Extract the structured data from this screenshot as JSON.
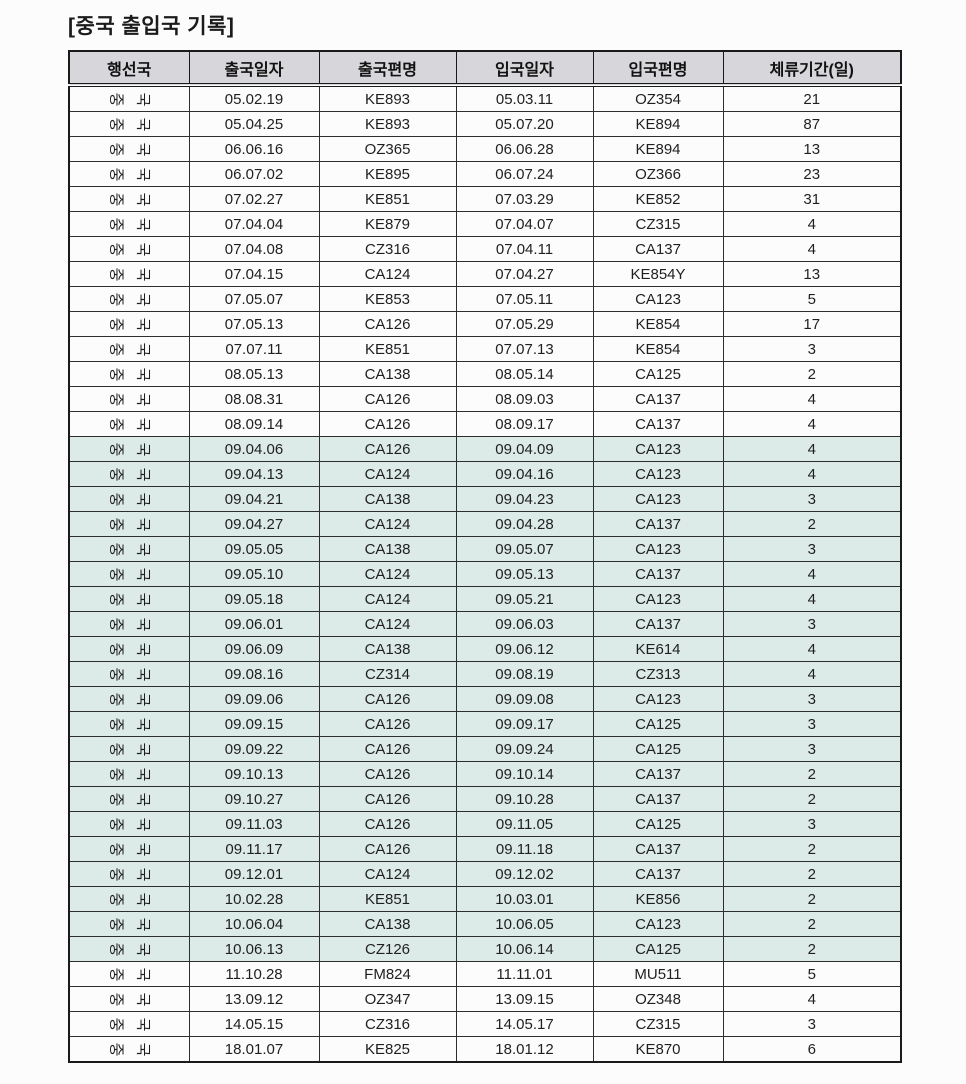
{
  "title": "[중국 출입국 기록]",
  "colors": {
    "header_bg": "#d7d7db",
    "highlight_bg": "#dcebe8",
    "border_dark": "#1a1a1a",
    "border_mid": "#2e2e2e"
  },
  "table": {
    "headers": [
      "행선국",
      "출국일자",
      "출국편명",
      "입국일자",
      "입국편명",
      "체류기간(일)"
    ],
    "rows": [
      {
        "country": "중 국",
        "dep_date": "05.02.19",
        "dep_flight": "KE893",
        "arr_date": "05.03.11",
        "arr_flight": "OZ354",
        "stay_days": "21",
        "highlight": false
      },
      {
        "country": "중 국",
        "dep_date": "05.04.25",
        "dep_flight": "KE893",
        "arr_date": "05.07.20",
        "arr_flight": "KE894",
        "stay_days": "87",
        "highlight": false
      },
      {
        "country": "중 국",
        "dep_date": "06.06.16",
        "dep_flight": "OZ365",
        "arr_date": "06.06.28",
        "arr_flight": "KE894",
        "stay_days": "13",
        "highlight": false
      },
      {
        "country": "중 국",
        "dep_date": "06.07.02",
        "dep_flight": "KE895",
        "arr_date": "06.07.24",
        "arr_flight": "OZ366",
        "stay_days": "23",
        "highlight": false
      },
      {
        "country": "중 국",
        "dep_date": "07.02.27",
        "dep_flight": "KE851",
        "arr_date": "07.03.29",
        "arr_flight": "KE852",
        "stay_days": "31",
        "highlight": false
      },
      {
        "country": "중 국",
        "dep_date": "07.04.04",
        "dep_flight": "KE879",
        "arr_date": "07.04.07",
        "arr_flight": "CZ315",
        "stay_days": "4",
        "highlight": false
      },
      {
        "country": "중 국",
        "dep_date": "07.04.08",
        "dep_flight": "CZ316",
        "arr_date": "07.04.11",
        "arr_flight": "CA137",
        "stay_days": "4",
        "highlight": false
      },
      {
        "country": "중 국",
        "dep_date": "07.04.15",
        "dep_flight": "CA124",
        "arr_date": "07.04.27",
        "arr_flight": "KE854Y",
        "stay_days": "13",
        "highlight": false
      },
      {
        "country": "중 국",
        "dep_date": "07.05.07",
        "dep_flight": "KE853",
        "arr_date": "07.05.11",
        "arr_flight": "CA123",
        "stay_days": "5",
        "highlight": false
      },
      {
        "country": "중 국",
        "dep_date": "07.05.13",
        "dep_flight": "CA126",
        "arr_date": "07.05.29",
        "arr_flight": "KE854",
        "stay_days": "17",
        "highlight": false
      },
      {
        "country": "중 국",
        "dep_date": "07.07.11",
        "dep_flight": "KE851",
        "arr_date": "07.07.13",
        "arr_flight": "KE854",
        "stay_days": "3",
        "highlight": false
      },
      {
        "country": "중 국",
        "dep_date": "08.05.13",
        "dep_flight": "CA138",
        "arr_date": "08.05.14",
        "arr_flight": "CA125",
        "stay_days": "2",
        "highlight": false
      },
      {
        "country": "중 국",
        "dep_date": "08.08.31",
        "dep_flight": "CA126",
        "arr_date": "08.09.03",
        "arr_flight": "CA137",
        "stay_days": "4",
        "highlight": false
      },
      {
        "country": "중 국",
        "dep_date": "08.09.14",
        "dep_flight": "CA126",
        "arr_date": "08.09.17",
        "arr_flight": "CA137",
        "stay_days": "4",
        "highlight": false
      },
      {
        "country": "중 국",
        "dep_date": "09.04.06",
        "dep_flight": "CA126",
        "arr_date": "09.04.09",
        "arr_flight": "CA123",
        "stay_days": "4",
        "highlight": true
      },
      {
        "country": "중 국",
        "dep_date": "09.04.13",
        "dep_flight": "CA124",
        "arr_date": "09.04.16",
        "arr_flight": "CA123",
        "stay_days": "4",
        "highlight": true
      },
      {
        "country": "중 국",
        "dep_date": "09.04.21",
        "dep_flight": "CA138",
        "arr_date": "09.04.23",
        "arr_flight": "CA123",
        "stay_days": "3",
        "highlight": true
      },
      {
        "country": "중 국",
        "dep_date": "09.04.27",
        "dep_flight": "CA124",
        "arr_date": "09.04.28",
        "arr_flight": "CA137",
        "stay_days": "2",
        "highlight": true
      },
      {
        "country": "중 국",
        "dep_date": "09.05.05",
        "dep_flight": "CA138",
        "arr_date": "09.05.07",
        "arr_flight": "CA123",
        "stay_days": "3",
        "highlight": true
      },
      {
        "country": "중 국",
        "dep_date": "09.05.10",
        "dep_flight": "CA124",
        "arr_date": "09.05.13",
        "arr_flight": "CA137",
        "stay_days": "4",
        "highlight": true
      },
      {
        "country": "중 국",
        "dep_date": "09.05.18",
        "dep_flight": "CA124",
        "arr_date": "09.05.21",
        "arr_flight": "CA123",
        "stay_days": "4",
        "highlight": true
      },
      {
        "country": "중 국",
        "dep_date": "09.06.01",
        "dep_flight": "CA124",
        "arr_date": "09.06.03",
        "arr_flight": "CA137",
        "stay_days": "3",
        "highlight": true
      },
      {
        "country": "중 국",
        "dep_date": "09.06.09",
        "dep_flight": "CA138",
        "arr_date": "09.06.12",
        "arr_flight": "KE614",
        "stay_days": "4",
        "highlight": true
      },
      {
        "country": "중 국",
        "dep_date": "09.08.16",
        "dep_flight": "CZ314",
        "arr_date": "09.08.19",
        "arr_flight": "CZ313",
        "stay_days": "4",
        "highlight": true
      },
      {
        "country": "중 국",
        "dep_date": "09.09.06",
        "dep_flight": "CA126",
        "arr_date": "09.09.08",
        "arr_flight": "CA123",
        "stay_days": "3",
        "highlight": true
      },
      {
        "country": "중 국",
        "dep_date": "09.09.15",
        "dep_flight": "CA126",
        "arr_date": "09.09.17",
        "arr_flight": "CA125",
        "stay_days": "3",
        "highlight": true
      },
      {
        "country": "중 국",
        "dep_date": "09.09.22",
        "dep_flight": "CA126",
        "arr_date": "09.09.24",
        "arr_flight": "CA125",
        "stay_days": "3",
        "highlight": true
      },
      {
        "country": "중 국",
        "dep_date": "09.10.13",
        "dep_flight": "CA126",
        "arr_date": "09.10.14",
        "arr_flight": "CA137",
        "stay_days": "2",
        "highlight": true
      },
      {
        "country": "중 국",
        "dep_date": "09.10.27",
        "dep_flight": "CA126",
        "arr_date": "09.10.28",
        "arr_flight": "CA137",
        "stay_days": "2",
        "highlight": true
      },
      {
        "country": "중 국",
        "dep_date": "09.11.03",
        "dep_flight": "CA126",
        "arr_date": "09.11.05",
        "arr_flight": "CA125",
        "stay_days": "3",
        "highlight": true
      },
      {
        "country": "중 국",
        "dep_date": "09.11.17",
        "dep_flight": "CA126",
        "arr_date": "09.11.18",
        "arr_flight": "CA137",
        "stay_days": "2",
        "highlight": true
      },
      {
        "country": "중 국",
        "dep_date": "09.12.01",
        "dep_flight": "CA124",
        "arr_date": "09.12.02",
        "arr_flight": "CA137",
        "stay_days": "2",
        "highlight": true
      },
      {
        "country": "중 국",
        "dep_date": "10.02.28",
        "dep_flight": "KE851",
        "arr_date": "10.03.01",
        "arr_flight": "KE856",
        "stay_days": "2",
        "highlight": true
      },
      {
        "country": "중 국",
        "dep_date": "10.06.04",
        "dep_flight": "CA138",
        "arr_date": "10.06.05",
        "arr_flight": "CA123",
        "stay_days": "2",
        "highlight": true
      },
      {
        "country": "중 국",
        "dep_date": "10.06.13",
        "dep_flight": "CZ126",
        "arr_date": "10.06.14",
        "arr_flight": "CA125",
        "stay_days": "2",
        "highlight": true
      },
      {
        "country": "중 국",
        "dep_date": "11.10.28",
        "dep_flight": "FM824",
        "arr_date": "11.11.01",
        "arr_flight": "MU511",
        "stay_days": "5",
        "highlight": false
      },
      {
        "country": "중 국",
        "dep_date": "13.09.12",
        "dep_flight": "OZ347",
        "arr_date": "13.09.15",
        "arr_flight": "OZ348",
        "stay_days": "4",
        "highlight": false
      },
      {
        "country": "중 국",
        "dep_date": "14.05.15",
        "dep_flight": "CZ316",
        "arr_date": "14.05.17",
        "arr_flight": "CZ315",
        "stay_days": "3",
        "highlight": false
      },
      {
        "country": "중 국",
        "dep_date": "18.01.07",
        "dep_flight": "KE825",
        "arr_date": "18.01.12",
        "arr_flight": "KE870",
        "stay_days": "6",
        "highlight": false
      }
    ]
  }
}
